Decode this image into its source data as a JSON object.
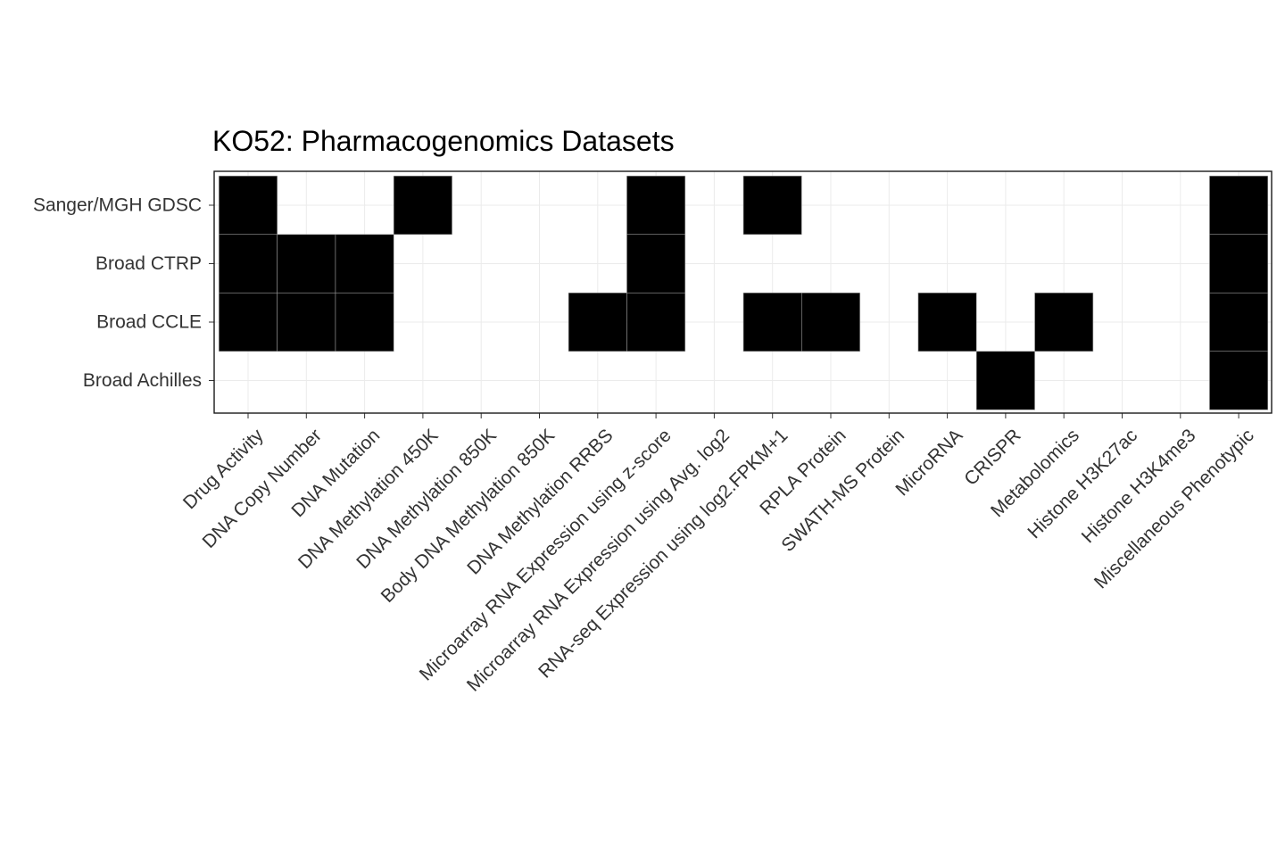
{
  "chart_data": {
    "type": "heatmap",
    "title": "KO52: Pharmacogenomics Datasets",
    "xlabel": "",
    "ylabel": "",
    "grid": true,
    "x_categories": [
      "Drug Activity",
      "DNA Copy Number",
      "DNA Mutation",
      "DNA Methylation 450K",
      "DNA Methylation 850K",
      "Body DNA Methylation 850K",
      "DNA Methylation RRBS",
      "Microarray RNA Expression using z-score",
      "Microarray RNA Expression using Avg. log2",
      "RNA-seq Expression using log2.FPKM+1",
      "RPLA Protein",
      "SWATH-MS Protein",
      "MicroRNA",
      "CRISPR",
      "Metabolomics",
      "Histone H3K27ac",
      "Histone H3K4me3",
      "Miscellaneous Phenotypic"
    ],
    "y_categories": [
      "Sanger/MGH GDSC",
      "Broad CTRP",
      "Broad CCLE",
      "Broad Achilles"
    ],
    "values": [
      [
        1,
        0,
        0,
        1,
        0,
        0,
        0,
        1,
        0,
        1,
        0,
        0,
        0,
        0,
        0,
        0,
        0,
        1
      ],
      [
        1,
        1,
        1,
        0,
        0,
        0,
        0,
        1,
        0,
        0,
        0,
        0,
        0,
        0,
        0,
        0,
        0,
        1
      ],
      [
        1,
        1,
        1,
        0,
        0,
        0,
        1,
        1,
        0,
        1,
        1,
        0,
        1,
        0,
        1,
        0,
        0,
        1
      ],
      [
        0,
        0,
        0,
        0,
        0,
        0,
        0,
        0,
        0,
        0,
        0,
        0,
        0,
        1,
        0,
        0,
        0,
        1
      ]
    ],
    "colors": {
      "present": "#000000",
      "absent": "#ffffff",
      "cell_border": "#999999"
    }
  }
}
